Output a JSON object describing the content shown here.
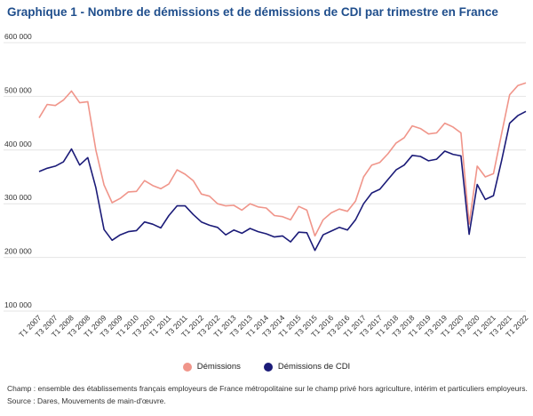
{
  "chart_data": {
    "type": "line",
    "title": "Graphique 1 - Nombre de démissions et de démissions de CDI par trimestre en France",
    "xlabel": "",
    "ylabel": "",
    "ylim": [
      100000,
      600000
    ],
    "yticks": [
      {
        "value": 100000,
        "label": "100 000"
      },
      {
        "value": 200000,
        "label": "200 000"
      },
      {
        "value": 300000,
        "label": "300 000"
      },
      {
        "value": 400000,
        "label": "400 000"
      },
      {
        "value": 500000,
        "label": "500 000"
      },
      {
        "value": 600000,
        "label": "600 000"
      }
    ],
    "grid": true,
    "legend_position": "bottom",
    "x_tick_labels": [
      "T1 2007",
      "T3 2007",
      "T1 2008",
      "T3 2008",
      "T1 2009",
      "T3 2009",
      "T1 2010",
      "T3 2010",
      "T1 2011",
      "T3 2011",
      "T1 2012",
      "T3 2012",
      "T1 2013",
      "T3 2013",
      "T1 2014",
      "T3 2014",
      "T1 2015",
      "T3 2015",
      "T1 2016",
      "T3 2016",
      "T1 2017",
      "T3 2017",
      "T1 2018",
      "T3 2018",
      "T1 2019",
      "T3 2019",
      "T1 2020",
      "T3 2020",
      "T1 2021",
      "T3 2021",
      "T1 2022"
    ],
    "categories": [
      "T1 2007",
      "T2 2007",
      "T3 2007",
      "T4 2007",
      "T1 2008",
      "T2 2008",
      "T3 2008",
      "T4 2008",
      "T1 2009",
      "T2 2009",
      "T3 2009",
      "T4 2009",
      "T1 2010",
      "T2 2010",
      "T3 2010",
      "T4 2010",
      "T1 2011",
      "T2 2011",
      "T3 2011",
      "T4 2011",
      "T1 2012",
      "T2 2012",
      "T3 2012",
      "T4 2012",
      "T1 2013",
      "T2 2013",
      "T3 2013",
      "T4 2013",
      "T1 2014",
      "T2 2014",
      "T3 2014",
      "T4 2014",
      "T1 2015",
      "T2 2015",
      "T3 2015",
      "T4 2015",
      "T1 2016",
      "T2 2016",
      "T3 2016",
      "T4 2016",
      "T1 2017",
      "T2 2017",
      "T3 2017",
      "T4 2017",
      "T1 2018",
      "T2 2018",
      "T3 2018",
      "T4 2018",
      "T1 2019",
      "T2 2019",
      "T3 2019",
      "T4 2019",
      "T1 2020",
      "T2 2020",
      "T3 2020",
      "T4 2020",
      "T1 2021",
      "T2 2021",
      "T3 2021",
      "T4 2021",
      "T1 2022"
    ],
    "series": [
      {
        "name": "Démissions",
        "color": "#f0958a",
        "values": [
          460000,
          485000,
          483000,
          493000,
          510000,
          488000,
          490000,
          400000,
          335000,
          302000,
          310000,
          322000,
          323000,
          343000,
          334000,
          328000,
          337000,
          363000,
          355000,
          343000,
          318000,
          314000,
          300000,
          296000,
          297000,
          288000,
          300000,
          294000,
          292000,
          278000,
          276000,
          270000,
          295000,
          288000,
          240000,
          270000,
          283000,
          290000,
          286000,
          305000,
          350000,
          372000,
          377000,
          393000,
          413000,
          423000,
          445000,
          440000,
          430000,
          432000,
          450000,
          443000,
          432000,
          262000,
          370000,
          350000,
          356000,
          430000,
          503000,
          520000,
          525000
        ]
      },
      {
        "name": "Démissions de CDI",
        "color": "#1b1b78",
        "values": [
          360000,
          366000,
          370000,
          378000,
          402000,
          372000,
          386000,
          330000,
          252000,
          232000,
          242000,
          248000,
          250000,
          266000,
          262000,
          255000,
          278000,
          296000,
          296000,
          280000,
          266000,
          260000,
          256000,
          242000,
          251000,
          245000,
          254000,
          248000,
          244000,
          238000,
          240000,
          229000,
          247000,
          246000,
          213000,
          242000,
          249000,
          256000,
          251000,
          270000,
          300000,
          320000,
          327000,
          345000,
          363000,
          372000,
          390000,
          388000,
          380000,
          383000,
          398000,
          392000,
          389000,
          243000,
          336000,
          308000,
          315000,
          380000,
          450000,
          464000,
          472000
        ]
      }
    ]
  },
  "notes": {
    "champ": "Champ : ensemble des établissements français employeurs de France métropolitaine sur le champ privé hors agriculture, intérim et particuliers employeurs.",
    "source": "Source : Dares, Mouvements de main-d'œuvre."
  }
}
